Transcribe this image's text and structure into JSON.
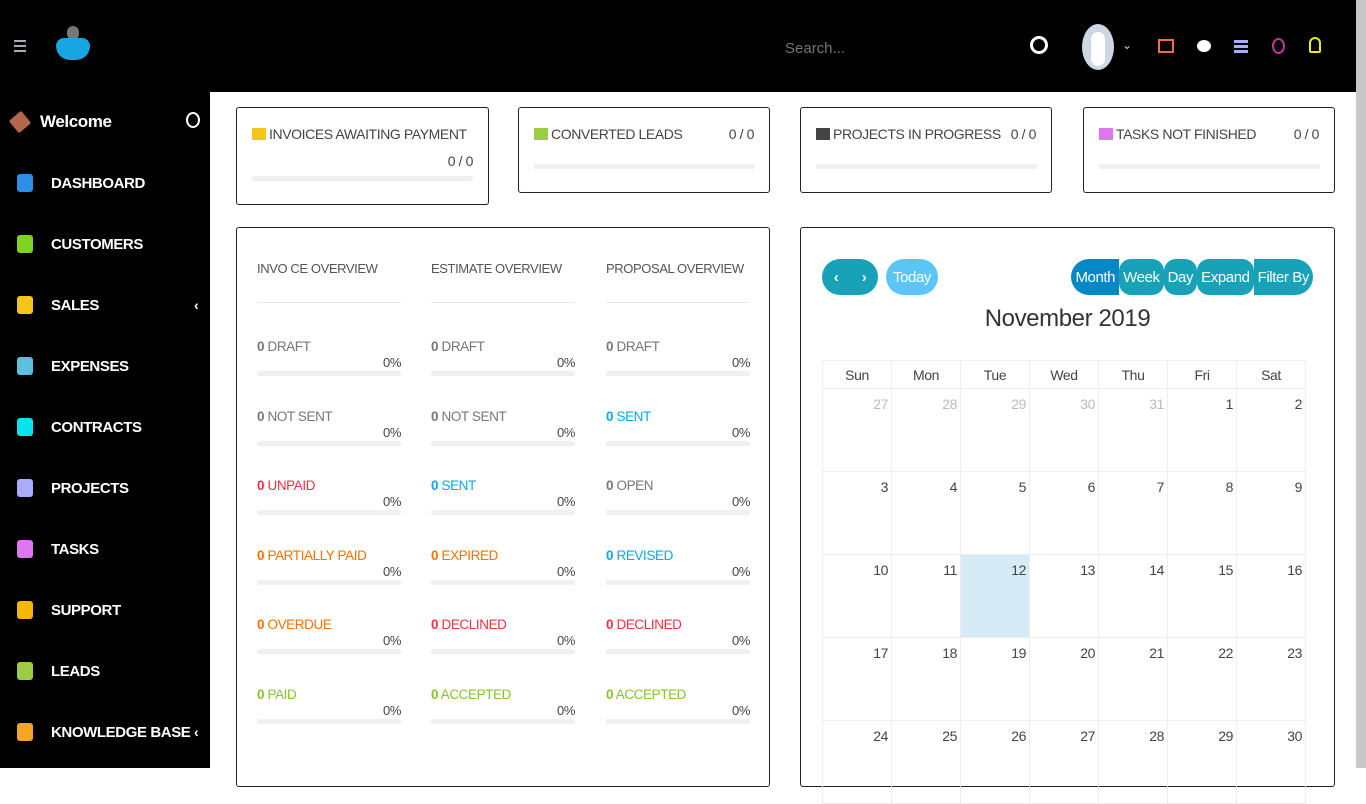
{
  "header": {
    "search_placeholder": "Search...",
    "icons": [
      "menu-icon",
      "logo",
      "search-icon",
      "avatar",
      "chevron-down-icon",
      "newspaper-icon",
      "chat-icon",
      "list-icon",
      "clock-icon",
      "bell-icon"
    ]
  },
  "sidebar": {
    "welcome": "Welcome",
    "items": [
      {
        "label": "DASHBOARD",
        "icon": "dashboard-icon",
        "color": "#2f8fe8"
      },
      {
        "label": "CUSTOMERS",
        "icon": "user-icon",
        "color": "#7ed321"
      },
      {
        "label": "SALES",
        "icon": "balance-scale-icon",
        "color": "#f5c518",
        "chevron": "‹"
      },
      {
        "label": "EXPENSES",
        "icon": "file-text-icon",
        "color": "#5bc0de"
      },
      {
        "label": "CONTRACTS",
        "icon": "file-icon",
        "color": "#00e5ee"
      },
      {
        "label": "PROJECTS",
        "icon": "bars-icon",
        "color": "#aaaaff"
      },
      {
        "label": "TASKS",
        "icon": "tasks-icon",
        "color": "#dd77ee"
      },
      {
        "label": "SUPPORT",
        "icon": "ticket-icon",
        "color": "#f5b800"
      },
      {
        "label": "LEADS",
        "icon": "tty-icon",
        "color": "#9ccc45"
      },
      {
        "label": "KNOWLEDGE BASE",
        "icon": "folder-open-icon",
        "color": "#f5a623",
        "chevron": "‹"
      }
    ]
  },
  "cards": [
    {
      "title": "INVOICES AWAITING PAYMENT",
      "value": "0 / 0",
      "progress": 0,
      "color": "#f5c518"
    },
    {
      "title": "CONVERTED LEADS",
      "value": "0 / 0",
      "progress": 0,
      "color": "#9ccc45"
    },
    {
      "title": "PROJECTS IN PROGRESS",
      "value": "0 / 0",
      "progress": 0,
      "color": "#444444"
    },
    {
      "title": "TASKS NOT FINISHED",
      "value": "0 / 0",
      "progress": 0,
      "color": "#dd77ee"
    }
  ],
  "overview": [
    {
      "title": "INVO CE OVERVIEW",
      "rows": [
        {
          "count": "0",
          "label": "DRAFT",
          "pct": "0%",
          "color": "#777777"
        },
        {
          "count": "0",
          "label": "NOT SENT",
          "pct": "0%",
          "color": "#777777"
        },
        {
          "count": "0",
          "label": "UNPAID",
          "pct": "0%",
          "color": "#fc2d42"
        },
        {
          "count": "0",
          "label": "PARTIALLY PAID",
          "pct": "0%",
          "color": "#ff6f00"
        },
        {
          "count": "0",
          "label": "OVERDUE",
          "pct": "0%",
          "color": "#ff6f00"
        },
        {
          "count": "0",
          "label": "PAID",
          "pct": "0%",
          "color": "#84c529"
        }
      ]
    },
    {
      "title": "ESTIMATE OVERVIEW",
      "rows": [
        {
          "count": "0",
          "label": "DRAFT",
          "pct": "0%",
          "color": "#777777"
        },
        {
          "count": "0",
          "label": "NOT SENT",
          "pct": "0%",
          "color": "#777777"
        },
        {
          "count": "0",
          "label": "SENT",
          "pct": "0%",
          "color": "#03a9f4"
        },
        {
          "count": "0",
          "label": "EXPIRED",
          "pct": "0%",
          "color": "#ff6f00"
        },
        {
          "count": "0",
          "label": "DECLINED",
          "pct": "0%",
          "color": "#fc2d42"
        },
        {
          "count": "0",
          "label": "ACCEPTED",
          "pct": "0%",
          "color": "#84c529"
        }
      ]
    },
    {
      "title": "PROPOSAL OVERVIEW",
      "rows": [
        {
          "count": "0",
          "label": "DRAFT",
          "pct": "0%",
          "color": "#777777"
        },
        {
          "count": "0",
          "label": "SENT",
          "pct": "0%",
          "color": "#03a9f4"
        },
        {
          "count": "0",
          "label": "OPEN",
          "pct": "0%",
          "color": "#777777"
        },
        {
          "count": "0",
          "label": "REVISED",
          "pct": "0%",
          "color": "#03a9f4"
        },
        {
          "count": "0",
          "label": "DECLINED",
          "pct": "0%",
          "color": "#fc2d42"
        },
        {
          "count": "0",
          "label": "ACCEPTED",
          "pct": "0%",
          "color": "#84c529"
        }
      ]
    }
  ],
  "calendar": {
    "title": "November 2019",
    "today_label": "Today",
    "views": [
      "Month",
      "Week",
      "Day",
      "Expand",
      "Filter By"
    ],
    "active_view": "Month",
    "weekdays": [
      "Sun",
      "Mon",
      "Tue",
      "Wed",
      "Thu",
      "Fri",
      "Sat"
    ],
    "weeks": [
      [
        "27",
        "28",
        "29",
        "30",
        "31",
        "1",
        "2"
      ],
      [
        "3",
        "4",
        "5",
        "6",
        "7",
        "8",
        "9"
      ],
      [
        "10",
        "11",
        "12",
        "13",
        "14",
        "15",
        "16"
      ],
      [
        "17",
        "18",
        "19",
        "20",
        "21",
        "22",
        "23"
      ],
      [
        "24",
        "25",
        "26",
        "27",
        "28",
        "29",
        "30"
      ]
    ],
    "today": "12"
  }
}
